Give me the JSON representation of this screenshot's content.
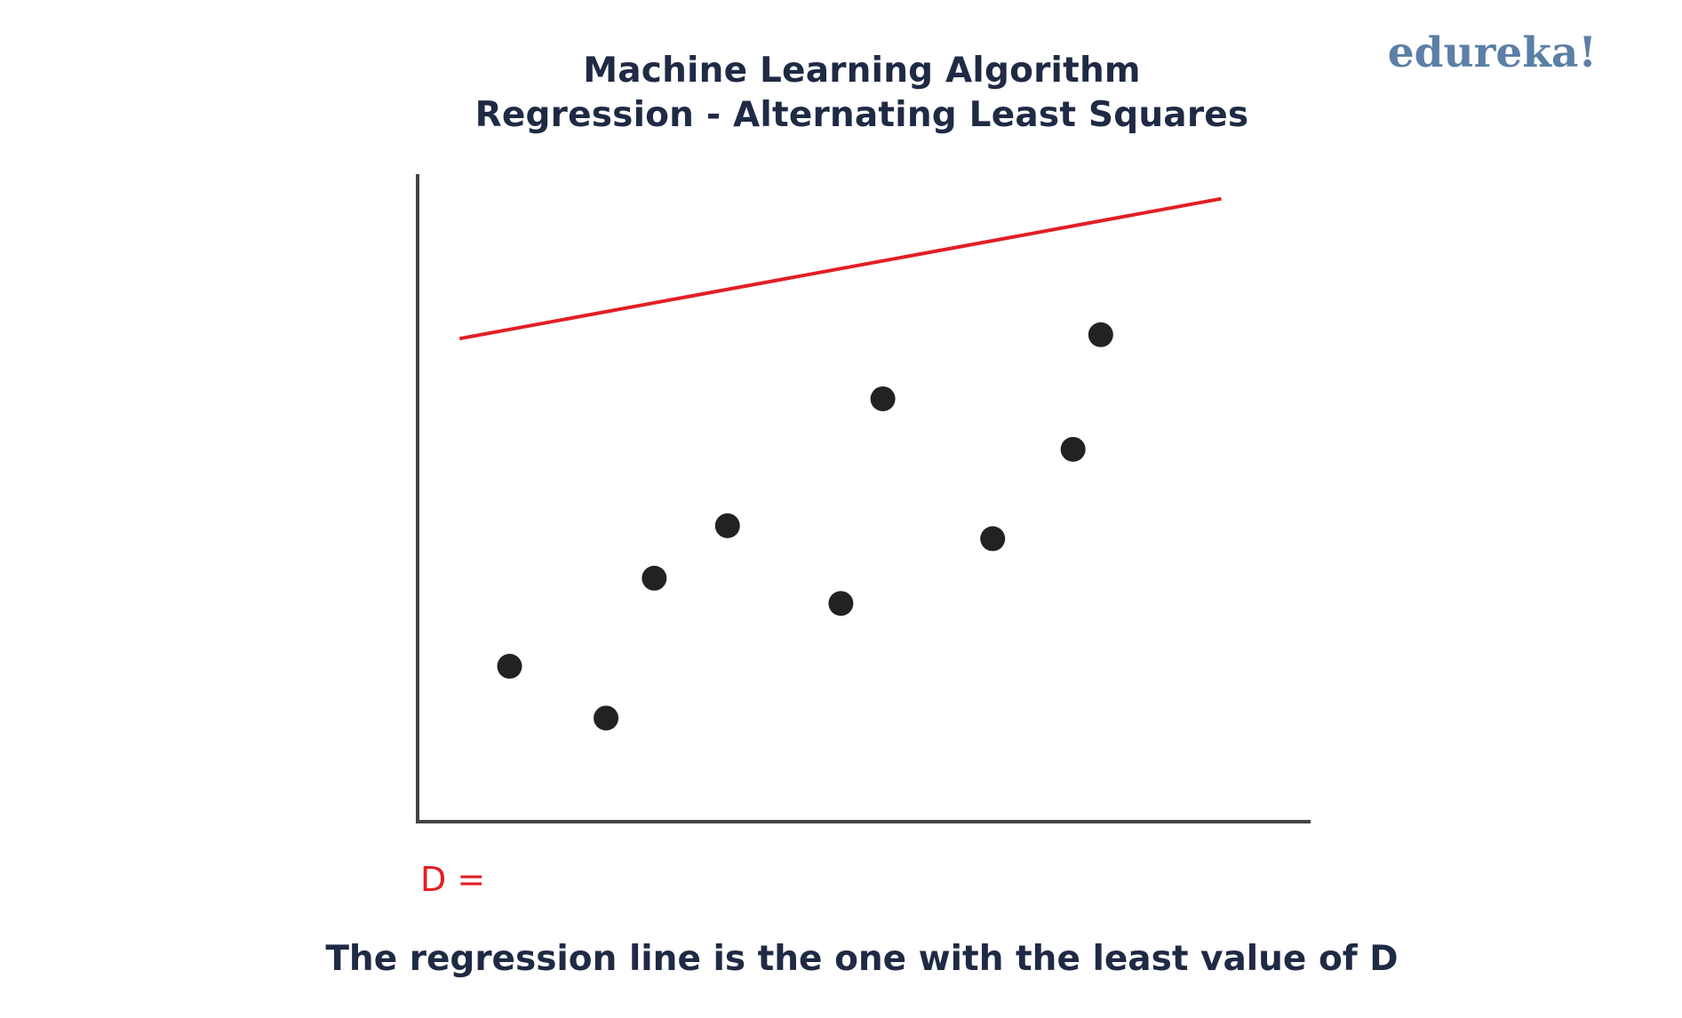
{
  "header": {
    "title_line_1": "Machine Learning Algorithm",
    "title_line_2": "Regression - Alternating Least Squares",
    "brand": "edureka!"
  },
  "d_label": "D =",
  "caption": "The regression line is the one with the least value of D",
  "colors": {
    "title": "#1f2a44",
    "brand": "#5b7fa6",
    "line": "#e31e24",
    "points": "#222222",
    "axes": "#444444"
  },
  "chart_data": {
    "type": "scatter",
    "title": "Machine Learning Algorithm Regression - Alternating Least Squares",
    "xlabel": "",
    "ylabel": "",
    "xlim": [
      0,
      100
    ],
    "ylim": [
      0,
      100
    ],
    "grid": false,
    "series": [
      {
        "kind": "points",
        "x": [
          10.3,
          21.1,
          26.5,
          34.7,
          47.4,
          52.1,
          64.4,
          73.4,
          76.5
        ],
        "y": [
          24.0,
          16.0,
          37.6,
          45.7,
          33.7,
          65.3,
          43.7,
          57.5,
          75.2
        ]
      },
      {
        "kind": "line",
        "x": [
          4.7,
          90.0
        ],
        "y": [
          74.6,
          96.2
        ]
      }
    ]
  }
}
